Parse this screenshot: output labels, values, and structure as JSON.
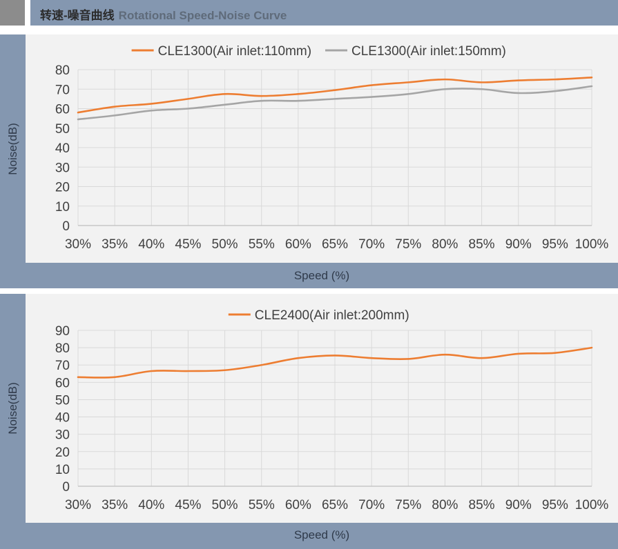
{
  "header": {
    "title_cn": "转速-噪音曲线",
    "title_en": "Rotational Speed-Noise Curve"
  },
  "colors": {
    "orange": "#ed7d31",
    "gray": "#a5a5a5",
    "panel": "#8497b0",
    "plot_bg": "#f2f2f2",
    "grid": "#d9d9d9"
  },
  "chart_data": [
    {
      "type": "line",
      "categories": [
        "30%",
        "35%",
        "40%",
        "45%",
        "50%",
        "55%",
        "60%",
        "65%",
        "70%",
        "75%",
        "80%",
        "85%",
        "90%",
        "95%",
        "100%"
      ],
      "series": [
        {
          "name": "CLE1300(Air inlet:110mm)",
          "color": "#ed7d31",
          "values": [
            58,
            61,
            62.5,
            65,
            67.5,
            66.5,
            67.5,
            69.5,
            72,
            73.5,
            75,
            73.5,
            74.5,
            75,
            76
          ]
        },
        {
          "name": "CLE1300(Air inlet:150mm)",
          "color": "#a5a5a5",
          "values": [
            54.5,
            56.5,
            59,
            60,
            62,
            64,
            64,
            65,
            66,
            67.5,
            70,
            70,
            68,
            69,
            71.5
          ]
        }
      ],
      "xlabel": "Speed (%)",
      "ylabel": "Noise(dB)",
      "ylim": [
        0,
        80
      ],
      "yticks": [
        "0",
        "10",
        "20",
        "30",
        "40",
        "50",
        "60",
        "70",
        "80"
      ],
      "grid": true,
      "legend": "top-center"
    },
    {
      "type": "line",
      "categories": [
        "30%",
        "35%",
        "40%",
        "45%",
        "50%",
        "55%",
        "60%",
        "65%",
        "70%",
        "75%",
        "80%",
        "85%",
        "90%",
        "95%",
        "100%"
      ],
      "series": [
        {
          "name": "CLE2400(Air inlet:200mm)",
          "color": "#ed7d31",
          "values": [
            63,
            63,
            66.5,
            66.5,
            67,
            70,
            74,
            75.5,
            74,
            73.5,
            76,
            74,
            76.5,
            77,
            80
          ]
        }
      ],
      "xlabel": "Speed (%)",
      "ylabel": "Noise(dB)",
      "ylim": [
        0,
        90
      ],
      "yticks": [
        "0",
        "10",
        "20",
        "30",
        "40",
        "50",
        "60",
        "70",
        "80",
        "90"
      ],
      "grid": true,
      "legend": "top-center"
    }
  ]
}
